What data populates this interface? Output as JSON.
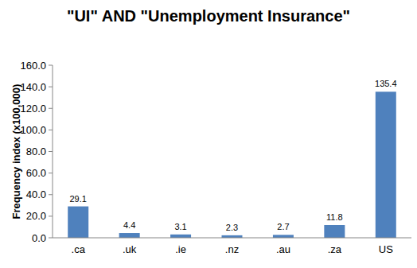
{
  "chart_data": {
    "type": "bar",
    "title": "\"UI\" AND \"Unemployment Insurance\"",
    "y_label": "Frequency index (x100,000)",
    "categories": [
      ".ca",
      ".uk",
      ".ie",
      ".nz",
      ".au",
      ".za",
      "US"
    ],
    "values": [
      29.1,
      4.4,
      3.1,
      2.3,
      2.7,
      11.8,
      135.4
    ],
    "color": "#4f81bd",
    "ylim": [
      0,
      160
    ],
    "yticks": [
      {
        "value": 0,
        "label": "0.0"
      },
      {
        "value": 20,
        "label": "20.0"
      },
      {
        "value": 40,
        "label": "40.0"
      },
      {
        "value": 60,
        "label": "60.0"
      },
      {
        "value": 80,
        "label": "80.0"
      },
      {
        "value": 100,
        "label": "100.0"
      },
      {
        "value": 120,
        "label": "120.0"
      },
      {
        "value": 140,
        "label": "140.0"
      },
      {
        "value": 160,
        "label": "160.0"
      }
    ],
    "grid": false,
    "data_labels": true
  }
}
